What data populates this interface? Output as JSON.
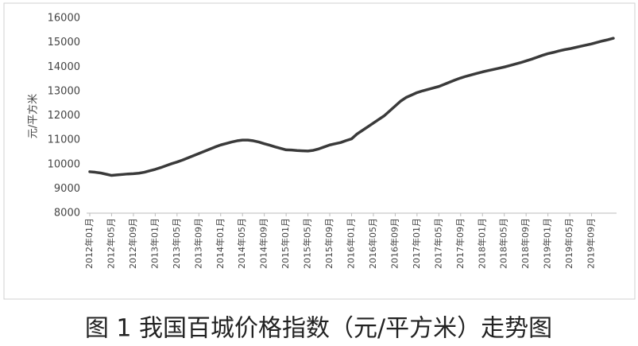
{
  "chart_data": {
    "type": "line",
    "title": "图 1 我国百城价格指数（元/平方米）走势图",
    "y_label": "元/平方米",
    "categories": [
      "2012年01月",
      null,
      null,
      null,
      "2012年05月",
      null,
      null,
      null,
      "2012年09月",
      null,
      null,
      null,
      "2013年01月",
      null,
      null,
      null,
      "2013年05月",
      null,
      null,
      null,
      "2013年09月",
      null,
      null,
      null,
      "2014年01月",
      null,
      null,
      null,
      "2014年05月",
      null,
      null,
      null,
      "2014年09月",
      null,
      null,
      null,
      "2015年01月",
      null,
      null,
      null,
      "2015年05月",
      null,
      null,
      null,
      "2015年09月",
      null,
      null,
      null,
      "2016年01月",
      null,
      null,
      null,
      "2016年05月",
      null,
      null,
      null,
      "2016年09月",
      null,
      null,
      null,
      "2017年01月",
      null,
      null,
      null,
      "2017年05月",
      null,
      null,
      null,
      "2017年09月",
      null,
      null,
      null,
      "2018年01月",
      null,
      null,
      null,
      "2018年05月",
      null,
      null,
      null,
      "2018年09月",
      null,
      null,
      null,
      "2019年01月",
      null,
      null,
      null,
      "2019年05月",
      null,
      null,
      null,
      "2019年09月",
      null,
      null,
      null,
      null
    ],
    "values": [
      9700,
      9680,
      9650,
      9600,
      9550,
      9570,
      9590,
      9610,
      9620,
      9640,
      9680,
      9740,
      9800,
      9870,
      9950,
      10030,
      10100,
      10180,
      10270,
      10360,
      10450,
      10540,
      10630,
      10720,
      10800,
      10860,
      10920,
      10970,
      11000,
      11000,
      10970,
      10920,
      10850,
      10790,
      10720,
      10660,
      10600,
      10590,
      10570,
      10560,
      10550,
      10580,
      10640,
      10720,
      10800,
      10850,
      10900,
      10980,
      11050,
      11250,
      11400,
      11550,
      11700,
      11850,
      12000,
      12200,
      12400,
      12600,
      12750,
      12850,
      12950,
      13020,
      13080,
      13140,
      13200,
      13290,
      13380,
      13470,
      13550,
      13620,
      13680,
      13740,
      13800,
      13850,
      13900,
      13950,
      14000,
      14060,
      14120,
      14180,
      14250,
      14320,
      14400,
      14480,
      14550,
      14600,
      14660,
      14710,
      14750,
      14800,
      14850,
      14900,
      14950,
      15010,
      15070,
      15120,
      15180
    ],
    "color": "#3a3a3a",
    "ylim": [
      8000,
      16000
    ],
    "yticks": [
      8000,
      9000,
      10000,
      11000,
      12000,
      13000,
      14000,
      15000,
      16000
    ],
    "grid": false
  }
}
